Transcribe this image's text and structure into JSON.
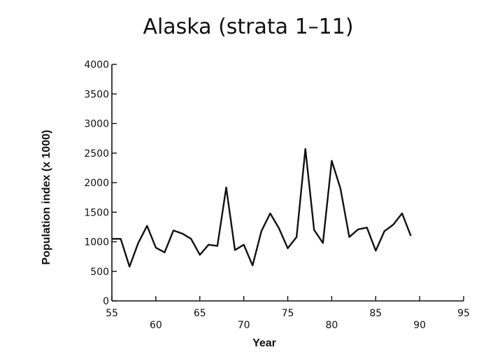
{
  "chart_data": {
    "type": "line",
    "title": "Alaska (strata 1–11)",
    "xlabel": "Year",
    "ylabel": "Population index (x 1000)",
    "xlim": [
      55,
      95
    ],
    "ylim": [
      0,
      4000
    ],
    "xticks": [
      55,
      60,
      65,
      70,
      75,
      80,
      85,
      90,
      95
    ],
    "xtick_labels": [
      "55",
      "60",
      "65",
      "70",
      "75",
      "80",
      "85",
      "90",
      "95"
    ],
    "yticks": [
      0,
      500,
      1000,
      1500,
      2000,
      2500,
      3000,
      3500,
      4000
    ],
    "ytick_labels": [
      "0",
      "500",
      "1000",
      "1500",
      "2000",
      "2500",
      "3000",
      "3500",
      "4000"
    ],
    "grid": false,
    "series": [
      {
        "x": [
          55,
          56,
          57,
          58,
          59,
          60,
          61,
          62,
          63,
          64,
          65,
          66,
          67,
          68,
          69,
          70,
          71,
          72,
          73,
          74,
          75,
          76,
          77,
          78,
          79,
          80,
          81,
          82,
          83,
          84,
          85,
          86,
          87,
          88,
          89
        ],
        "y": [
          1050,
          1050,
          580,
          980,
          1270,
          900,
          820,
          1190,
          1140,
          1050,
          780,
          950,
          930,
          1920,
          860,
          950,
          600,
          1180,
          1480,
          1230,
          890,
          1080,
          2570,
          1200,
          980,
          2370,
          1900,
          1080,
          1210,
          1240,
          850,
          1180,
          1290,
          1480,
          1100
        ]
      }
    ]
  }
}
